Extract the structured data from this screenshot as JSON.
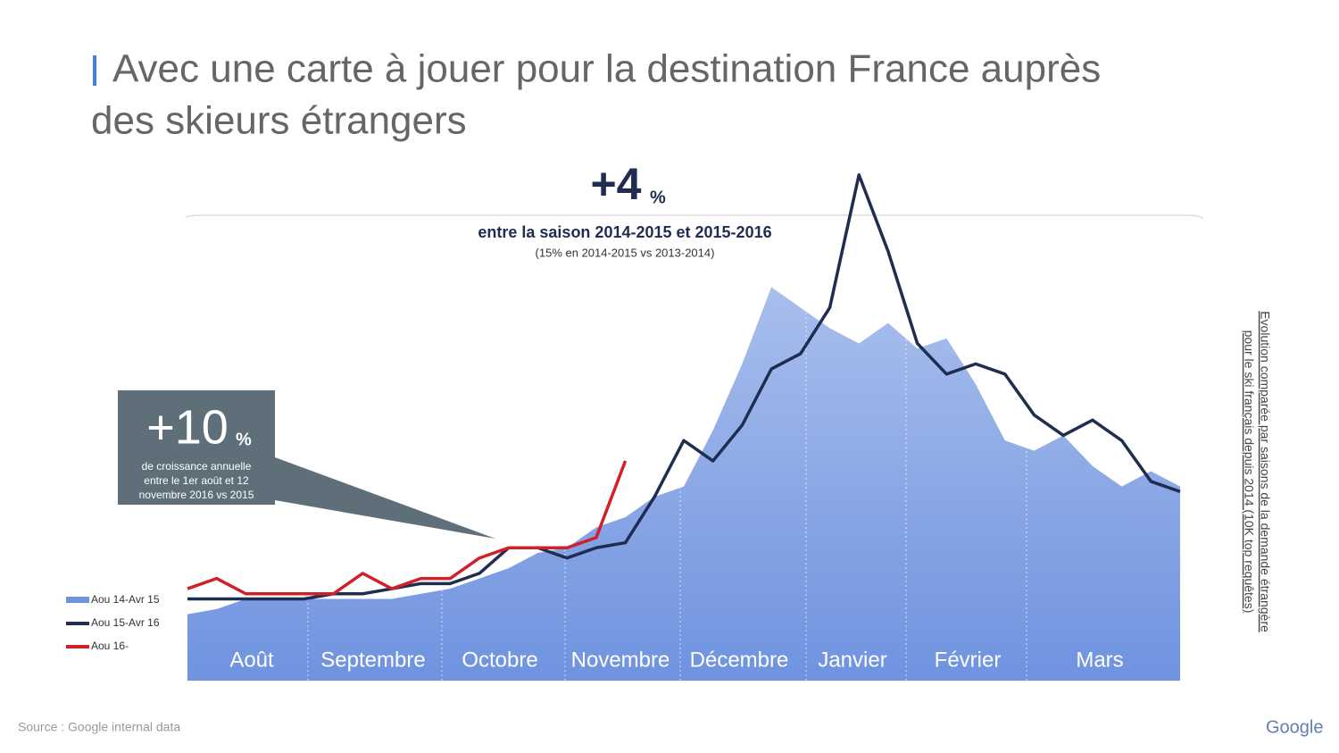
{
  "chart_data": {
    "type": "area_line",
    "title_lines": [
      "Avec une carte à jouer pour la destination France auprès",
      "des skieurs étrangers"
    ],
    "headline": {
      "value": "+4",
      "unit": "%",
      "text": "entre la saison 2014-2015 et 2015-2016",
      "note": "(15% en 2014-2015 vs 2013-2014)"
    },
    "callout": {
      "value": "+10",
      "unit": "%",
      "lines": [
        "de croissance annuelle",
        "entre le 1er août et 12",
        "novembre 2016 vs 2015"
      ]
    },
    "months": [
      "Août",
      "Septembre",
      "Octobre",
      "Novembre",
      "Décembre",
      "Janvier",
      "Février",
      "Mars"
    ],
    "ylim": [
      0,
      100
    ],
    "series": [
      {
        "name": "Aou 14-Avr 15",
        "color": "#6f93e0",
        "kind": "area",
        "values": [
          13,
          14,
          16,
          16,
          16,
          16,
          16,
          16,
          17,
          18,
          20,
          22,
          25,
          26,
          30,
          32,
          36,
          38,
          49,
          62,
          77,
          73,
          69,
          66,
          70,
          65,
          67,
          58,
          47,
          45,
          48,
          42,
          38,
          41,
          38
        ]
      },
      {
        "name": "Aou 15-Avr 16",
        "color": "#1f2d50",
        "kind": "line",
        "values": [
          16,
          16,
          16,
          16,
          16,
          17,
          17,
          18,
          19,
          19,
          21,
          26,
          26,
          24,
          26,
          27,
          36,
          47,
          43,
          50,
          61,
          64,
          73,
          99,
          84,
          66,
          60,
          62,
          60,
          52,
          48,
          51,
          47,
          39,
          37
        ]
      },
      {
        "name": "Aou 16-",
        "color": "#d0202a",
        "kind": "line",
        "values": [
          18,
          20,
          17,
          17,
          17,
          17,
          21,
          18,
          20,
          20,
          24,
          26,
          26,
          26,
          28,
          43,
          null,
          null,
          null,
          null,
          null,
          null,
          null,
          null,
          null,
          null,
          null,
          null,
          null,
          null,
          null,
          null,
          null,
          null,
          null
        ]
      }
    ],
    "side_note": [
      "Evolution comparée par saisons de la demande étrangère",
      "pour le ski français depuis 2014 (10K top requêtes)"
    ],
    "source": "Source : Google internal data",
    "logo": "Google"
  }
}
